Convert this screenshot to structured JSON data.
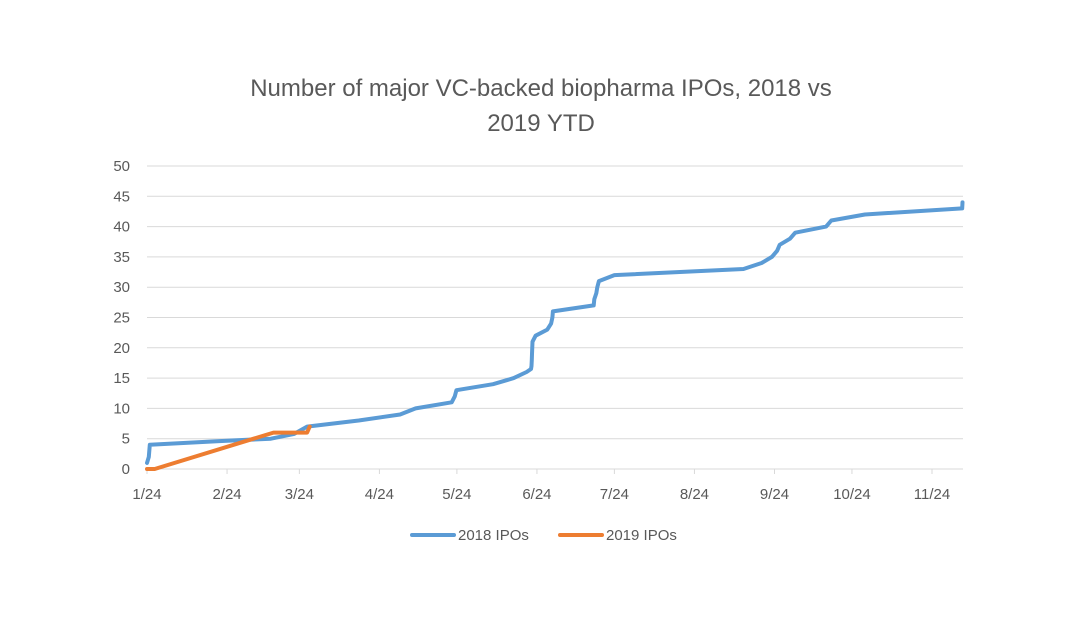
{
  "chart_data": {
    "type": "line",
    "title_lines": [
      "Number of major VC-backed biopharma IPOs, 2018 vs",
      "2019 YTD"
    ],
    "xlabel": "",
    "ylabel": "",
    "ylim": [
      0,
      50
    ],
    "y_ticks": [
      0,
      5,
      10,
      15,
      20,
      25,
      30,
      35,
      40,
      45,
      50
    ],
    "x_ticks": [
      {
        "label": "1/24",
        "day": 0
      },
      {
        "label": "2/24",
        "day": 31
      },
      {
        "label": "3/24",
        "day": 59
      },
      {
        "label": "4/24",
        "day": 90
      },
      {
        "label": "5/24",
        "day": 120
      },
      {
        "label": "6/24",
        "day": 151
      },
      {
        "label": "7/24",
        "day": 181
      },
      {
        "label": "8/24",
        "day": 212
      },
      {
        "label": "9/24",
        "day": 243
      },
      {
        "label": "10/24",
        "day": 273
      },
      {
        "label": "11/24",
        "day": 304
      }
    ],
    "xlim_days": [
      0,
      316
    ],
    "grid": true,
    "legend_position": "bottom",
    "series": [
      {
        "name": "2018 IPOs",
        "color": "#5b9bd5",
        "points": [
          [
            0,
            1
          ],
          [
            0.7,
            2
          ],
          [
            0.9,
            3
          ],
          [
            1.1,
            4
          ],
          [
            28,
            4.6
          ],
          [
            48,
            5
          ],
          [
            57,
            5.8
          ],
          [
            62,
            7
          ],
          [
            82,
            8
          ],
          [
            98,
            9
          ],
          [
            104,
            10
          ],
          [
            118,
            11
          ],
          [
            119.2,
            12
          ],
          [
            119.8,
            13
          ],
          [
            134,
            14
          ],
          [
            142,
            15
          ],
          [
            147,
            16
          ],
          [
            148.7,
            16.5
          ],
          [
            148.9,
            17
          ],
          [
            149,
            18
          ],
          [
            149.1,
            19
          ],
          [
            149.3,
            21
          ],
          [
            150.5,
            22
          ],
          [
            155,
            23
          ],
          [
            156.5,
            24
          ],
          [
            157,
            25
          ],
          [
            157.2,
            26
          ],
          [
            173,
            27
          ],
          [
            173.2,
            28
          ],
          [
            174,
            29
          ],
          [
            174.4,
            30
          ],
          [
            175,
            31
          ],
          [
            181,
            32
          ],
          [
            231,
            33
          ],
          [
            238,
            34
          ],
          [
            242,
            35
          ],
          [
            244,
            36
          ],
          [
            245,
            37
          ],
          [
            249,
            38
          ],
          [
            251,
            39
          ],
          [
            263,
            40
          ],
          [
            265,
            41
          ],
          [
            278,
            42
          ],
          [
            315.7,
            43
          ],
          [
            315.8,
            44
          ]
        ]
      },
      {
        "name": "2019 IPOs",
        "color": "#ed7d31",
        "points": [
          [
            0,
            0
          ],
          [
            3,
            0
          ],
          [
            49,
            6
          ],
          [
            62,
            6
          ],
          [
            62.5,
            6.5
          ],
          [
            63,
            7
          ]
        ]
      }
    ]
  }
}
